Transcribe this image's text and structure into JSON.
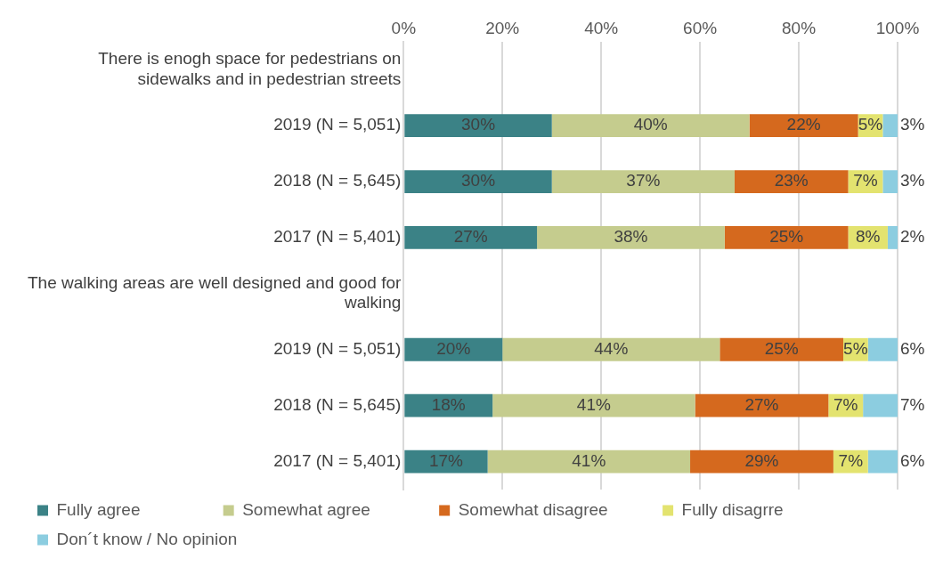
{
  "chart_data": {
    "type": "bar",
    "orientation": "horizontal",
    "stacked": true,
    "categories": [
      "There is enogh space for pedestrians on sidewalks and in pedestrian streets",
      "2019 (N = 5,051)",
      "2018 (N = 5,645)",
      "2017 (N = 5,401)",
      "The walking areas are well designed and good for walking",
      "2019 (N = 5,051)",
      "2018 (N = 5,645)",
      "2017 (N = 5,401)"
    ],
    "series": [
      {
        "name": "Fully agree",
        "color": "#3b8286",
        "values": [
          null,
          30,
          30,
          27,
          null,
          20,
          18,
          17
        ],
        "value_labels": [
          null,
          "30%",
          "30%",
          "27%",
          null,
          "20%",
          "18%",
          "17%"
        ]
      },
      {
        "name": "Somewhat agree",
        "color": "#c5cc8e",
        "values": [
          null,
          40,
          37,
          38,
          null,
          44,
          41,
          41
        ],
        "value_labels": [
          null,
          "40%",
          "37%",
          "38%",
          null,
          "44%",
          "41%",
          "41%"
        ]
      },
      {
        "name": "Somewhat disagree",
        "color": "#d5691e",
        "values": [
          null,
          22,
          23,
          25,
          null,
          25,
          27,
          29
        ],
        "value_labels": [
          null,
          "22%",
          "23%",
          "25%",
          null,
          "25%",
          "27%",
          "29%"
        ]
      },
      {
        "name": "Fully disagrre",
        "color": "#e3e36f",
        "values": [
          null,
          5,
          7,
          8,
          null,
          5,
          7,
          7
        ],
        "value_labels": [
          null,
          "5%",
          "7%",
          "8%",
          null,
          "5%",
          "7%",
          "7%"
        ]
      },
      {
        "name": "Don´t know / No opinion",
        "color": "#8ccde0",
        "values": [
          null,
          3,
          3,
          2,
          null,
          6,
          7,
          6
        ],
        "value_labels": [
          null,
          "3%",
          "3%",
          "2%",
          null,
          "6%",
          "7%",
          "6%"
        ]
      }
    ],
    "xlim": [
      0,
      100
    ],
    "xticks": [
      {
        "value": 0,
        "label": "0%"
      },
      {
        "value": 20,
        "label": "20%"
      },
      {
        "value": 40,
        "label": "40%"
      },
      {
        "value": 60,
        "label": "60%"
      },
      {
        "value": 80,
        "label": "80%"
      },
      {
        "value": 100,
        "label": "100%"
      }
    ],
    "grid": "x",
    "legend": "bottom"
  }
}
